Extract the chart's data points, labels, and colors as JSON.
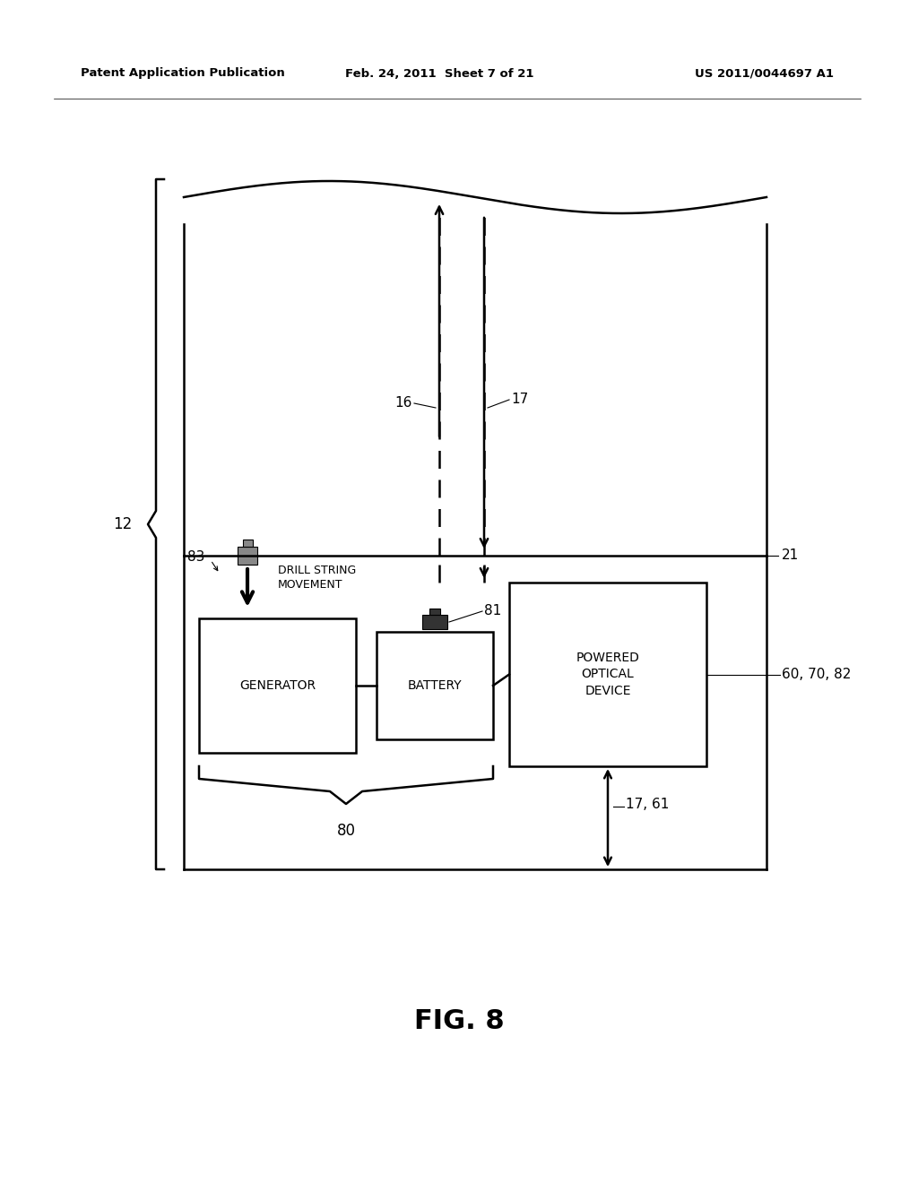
{
  "bg_color": "#ffffff",
  "fig_width": 10.24,
  "fig_height": 13.2,
  "header_left": "Patent Application Publication",
  "header_center": "Feb. 24, 2011  Sheet 7 of 21",
  "header_right": "US 2011/0044697 A1",
  "fig_label": "FIG. 8",
  "label_12": "12",
  "label_21": "21",
  "label_16": "16",
  "label_17_top": "17",
  "label_83": "83",
  "label_81": "81",
  "label_60_70_82": "60, 70, 82",
  "label_80": "80",
  "label_17_61": "17, 61",
  "text_drill": "DRILL STRING\nMOVEMENT",
  "text_generator": "GENERATOR",
  "text_battery": "BATTERY",
  "text_powered": "POWERED\nOPTICAL\nDEVICE",
  "note_color": "#000000",
  "line_color": "#000000"
}
